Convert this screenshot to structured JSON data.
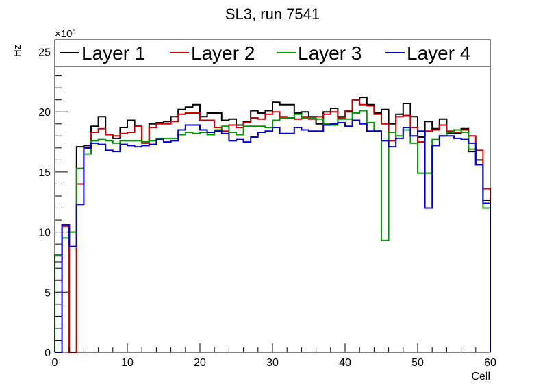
{
  "chart_data": {
    "type": "step-histogram",
    "title": "SL3, run 7541",
    "xlabel": "Cell",
    "ylabel": "Hz",
    "y_exponent_label": "×10³",
    "xlim": [
      0,
      60
    ],
    "ylim": [
      0,
      26
    ],
    "x_ticks": [
      0,
      10,
      20,
      30,
      40,
      50,
      60
    ],
    "y_ticks": [
      0,
      5,
      10,
      15,
      20,
      25
    ],
    "legend_position": "top",
    "series": [
      {
        "name": "Layer 1",
        "color": "#000000",
        "values": [
          7.5,
          10.6,
          0,
          17.1,
          17.2,
          18.8,
          19.6,
          18.1,
          17.8,
          18.7,
          19.3,
          18.8,
          17.5,
          19.0,
          19.1,
          19.2,
          19.6,
          20.2,
          20.4,
          20.6,
          19.6,
          19.9,
          19.9,
          19.3,
          19.4,
          18.9,
          19.2,
          20.1,
          19.9,
          20.1,
          20.8,
          20.6,
          20.6,
          19.9,
          20.0,
          19.6,
          19.0,
          20.0,
          20.3,
          19.6,
          20.0,
          21.0,
          21.2,
          20.6,
          19.9,
          20.2,
          19.0,
          19.8,
          20.7,
          19.6,
          17.9,
          19.2,
          18.6,
          19.4,
          18.2,
          18.2,
          18.6,
          16.7,
          16.0,
          12.6
        ]
      },
      {
        "name": "Layer 2",
        "color": "#cc0000",
        "values": [
          6.0,
          10.5,
          0,
          14.0,
          17.0,
          18.3,
          18.6,
          18.1,
          18.0,
          18.2,
          18.3,
          18.8,
          17.4,
          18.7,
          19.0,
          19.0,
          19.2,
          19.8,
          19.9,
          19.9,
          19.3,
          19.3,
          18.7,
          18.4,
          18.9,
          18.7,
          19.1,
          19.5,
          19.4,
          19.8,
          20.0,
          19.6,
          19.5,
          19.4,
          19.6,
          19.4,
          19.6,
          19.8,
          20.0,
          19.5,
          20.1,
          21.0,
          20.6,
          20.5,
          19.8,
          19.0,
          17.6,
          19.6,
          19.7,
          18.7,
          17.5,
          18.4,
          18.5,
          18.9,
          18.4,
          18.3,
          18.5,
          18.0,
          16.8,
          13.6
        ]
      },
      {
        "name": "Layer 3",
        "color": "#009900",
        "values": [
          8.1,
          9.5,
          10.0,
          15.3,
          16.5,
          17.6,
          17.7,
          17.6,
          17.4,
          17.6,
          17.6,
          17.6,
          17.5,
          17.6,
          17.8,
          17.8,
          17.8,
          18.1,
          18.3,
          18.2,
          18.3,
          18.1,
          18.5,
          18.8,
          18.3,
          18.1,
          18.8,
          18.8,
          18.8,
          18.7,
          19.3,
          19.5,
          19.5,
          19.8,
          19.5,
          19.5,
          19.4,
          19.0,
          18.9,
          19.4,
          19.4,
          19.9,
          20.1,
          19.1,
          18.4,
          9.3,
          18.3,
          18.0,
          18.5,
          17.4,
          14.9,
          14.9,
          17.7,
          18.0,
          18.3,
          18.5,
          18.3,
          16.9,
          15.6,
          12.0
        ]
      },
      {
        "name": "Layer 4",
        "color": "#0000cc",
        "values": [
          0,
          10.6,
          8.8,
          12.3,
          17.0,
          17.4,
          17.3,
          16.8,
          16.7,
          17.3,
          17.2,
          17.1,
          17.2,
          17.3,
          17.7,
          17.5,
          17.6,
          18.5,
          18.9,
          18.9,
          18.5,
          18.3,
          18.4,
          18.2,
          17.6,
          17.7,
          17.5,
          17.9,
          18.3,
          18.4,
          18.7,
          18.2,
          18.2,
          18.7,
          18.5,
          18.4,
          18.4,
          18.9,
          19.0,
          19.1,
          18.8,
          19.3,
          19.0,
          18.4,
          18.4,
          17.6,
          17.1,
          17.8,
          18.7,
          18.0,
          18.4,
          12.0,
          17.2,
          18.0,
          18.0,
          17.8,
          17.7,
          17.4,
          15.6,
          12.4
        ]
      }
    ]
  }
}
